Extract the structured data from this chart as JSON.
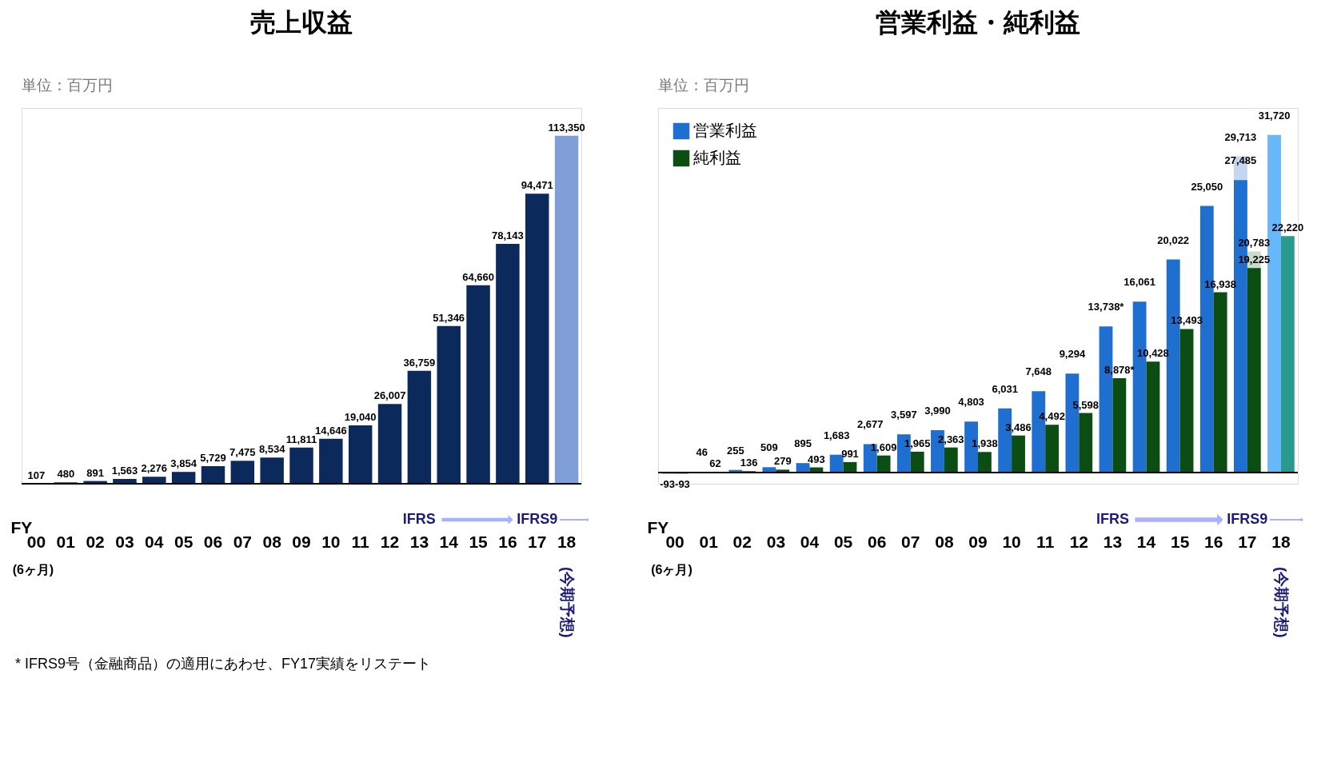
{
  "chart_data": [
    {
      "type": "bar",
      "title": "売上収益",
      "subtitle": "単位：百万円",
      "xlabel": "FY",
      "tick_labels": "x",
      "categories": [
        "00",
        "01",
        "02",
        "03",
        "04",
        "05",
        "06",
        "07",
        "08",
        "09",
        "10",
        "11",
        "12",
        "13",
        "14",
        "15",
        "16",
        "17",
        "18"
      ],
      "series": [
        {
          "colors": [
            "#0b2a5b",
            "#0b2a5b",
            "#0b2a5b",
            "#0b2a5b",
            "#0b2a5b",
            "#0b2a5b",
            "#0b2a5b",
            "#0b2a5b",
            "#0b2a5b",
            "#0b2a5b",
            "#0b2a5b",
            "#0b2a5b",
            "#0b2a5b",
            "#0b2a5b",
            "#0b2a5b",
            "#0b2a5b",
            "#0b2a5b",
            "#0b2a5b",
            "#809fd8"
          ],
          "values": [
            107,
            480,
            891,
            1563,
            2276,
            3854,
            5729,
            7475,
            8534,
            11811,
            14646,
            19040,
            26007,
            36759,
            51346,
            64660,
            78143,
            94471,
            113350
          ],
          "value_labels": [
            "107",
            "480",
            "891",
            "1,563",
            "2,276",
            "3,854",
            "5,729",
            "7,475",
            "8,534",
            "11,811",
            "14,646",
            "19,040",
            "26,007",
            "36,759",
            "51,346",
            "64,660",
            "78,143",
            "94,471",
            "113,350"
          ]
        }
      ],
      "annotations": [
        "(6ヶ月)",
        "(今期予想)",
        "IFRS",
        "IFRS9",
        "* IFRS9号（金融商品）の適用にあわせ、FY17実績をリステート"
      ]
    },
    {
      "type": "bar",
      "title": "営業利益・純利益",
      "subtitle": "単位：百万円",
      "xlabel": "FY",
      "tick_labels": "x",
      "legend": "top left",
      "categories": [
        "00",
        "01",
        "02",
        "03",
        "04",
        "05",
        "06",
        "07",
        "08",
        "09",
        "10",
        "11",
        "12",
        "13",
        "14",
        "15",
        "16",
        "17",
        "18"
      ],
      "series": [
        {
          "name": "営業利益",
          "colors": [
            "#1f6fd1",
            "#1f6fd1",
            "#1f6fd1",
            "#1f6fd1",
            "#1f6fd1",
            "#1f6fd1",
            "#1f6fd1",
            "#1f6fd1",
            "#1f6fd1",
            "#1f6fd1",
            "#1f6fd1",
            "#1f6fd1",
            "#1f6fd1",
            "#1f6fd1",
            "#1f6fd1",
            "#1f6fd1",
            "#1f6fd1",
            "#1f6fd1",
            "#66b8fa"
          ],
          "values": [
            -93,
            46,
            255,
            509,
            895,
            1683,
            2677,
            3597,
            3990,
            4803,
            6031,
            7648,
            9294,
            13738,
            16061,
            20022,
            25050,
            27485,
            31720
          ],
          "value_labels": [
            "-93",
            "46",
            "255",
            "509",
            "895",
            "1,683",
            "2,677",
            "3,597",
            "3,990",
            "4,803",
            "6,031",
            "7,648",
            "9,294",
            "13,738*",
            "16,061",
            "20,022",
            "25,050",
            "27,485",
            "31,720"
          ]
        },
        {
          "name": "純利益",
          "colors": [
            "#0b4d12",
            "#0b4d12",
            "#0b4d12",
            "#0b4d12",
            "#0b4d12",
            "#0b4d12",
            "#0b4d12",
            "#0b4d12",
            "#0b4d12",
            "#0b4d12",
            "#0b4d12",
            "#0b4d12",
            "#0b4d12",
            "#0b4d12",
            "#0b4d12",
            "#0b4d12",
            "#0b4d12",
            "#0b4d12",
            "#2a9a8c"
          ],
          "values": [
            -93,
            62,
            136,
            279,
            493,
            991,
            1609,
            1965,
            2363,
            1938,
            3486,
            4492,
            5598,
            8878,
            10428,
            13493,
            16938,
            19225,
            22220
          ],
          "value_labels": [
            "-93",
            "62",
            "136",
            "279",
            "493",
            "991",
            "1,609",
            "1,965",
            "2,363",
            "1,938",
            "3,486",
            "4,492",
            "5,598",
            "8,878*",
            "10,428",
            "13,493",
            "16,938",
            "19,225",
            "22,220"
          ]
        },
        {
          "color": "#c6d6ee",
          "values": [
            null,
            null,
            null,
            null,
            null,
            null,
            null,
            null,
            null,
            null,
            null,
            null,
            null,
            null,
            null,
            null,
            null,
            29713,
            null
          ],
          "value_labels": [
            null,
            null,
            null,
            null,
            null,
            null,
            null,
            null,
            null,
            null,
            null,
            null,
            null,
            null,
            null,
            null,
            null,
            "29,713",
            null
          ]
        },
        {
          "color": "#c9dcc9",
          "values": [
            null,
            null,
            null,
            null,
            null,
            null,
            null,
            null,
            null,
            null,
            null,
            null,
            null,
            null,
            null,
            null,
            null,
            20783,
            null
          ],
          "value_labels": [
            null,
            null,
            null,
            null,
            null,
            null,
            null,
            null,
            null,
            null,
            null,
            null,
            null,
            null,
            null,
            null,
            null,
            "20,783",
            null
          ]
        }
      ],
      "annotations": [
        "(6ヶ月)",
        "(今期予想)",
        "IFRS",
        "IFRS9"
      ]
    }
  ]
}
